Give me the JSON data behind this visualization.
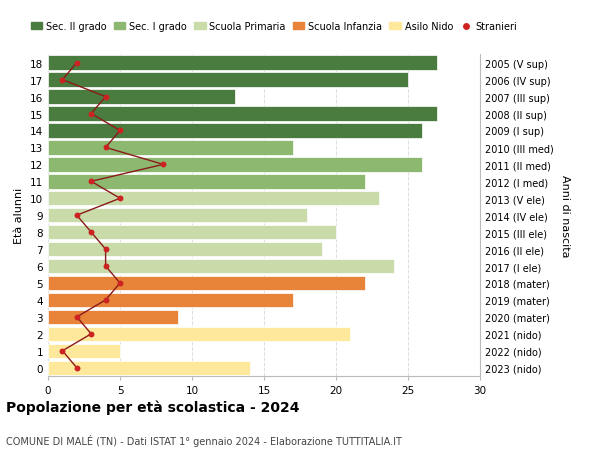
{
  "ages": [
    0,
    1,
    2,
    3,
    4,
    5,
    6,
    7,
    8,
    9,
    10,
    11,
    12,
    13,
    14,
    15,
    16,
    17,
    18
  ],
  "right_labels": [
    "2023 (nido)",
    "2022 (nido)",
    "2021 (nido)",
    "2020 (mater)",
    "2019 (mater)",
    "2018 (mater)",
    "2017 (I ele)",
    "2016 (II ele)",
    "2015 (III ele)",
    "2014 (IV ele)",
    "2013 (V ele)",
    "2012 (I med)",
    "2011 (II med)",
    "2010 (III med)",
    "2009 (I sup)",
    "2008 (II sup)",
    "2007 (III sup)",
    "2006 (IV sup)",
    "2005 (V sup)"
  ],
  "bar_values": [
    14,
    5,
    21,
    9,
    17,
    22,
    24,
    19,
    20,
    18,
    23,
    22,
    26,
    17,
    26,
    27,
    13,
    25,
    27
  ],
  "bar_colors": [
    "#fde89c",
    "#fde89c",
    "#fde89c",
    "#e8833a",
    "#e8833a",
    "#e8833a",
    "#c8dba8",
    "#c8dba8",
    "#c8dba8",
    "#c8dba8",
    "#c8dba8",
    "#8db870",
    "#8db870",
    "#8db870",
    "#4a7c3f",
    "#4a7c3f",
    "#4a7c3f",
    "#4a7c3f",
    "#4a7c3f"
  ],
  "stranieri_values": [
    2,
    1,
    3,
    2,
    4,
    5,
    4,
    4,
    3,
    2,
    5,
    3,
    8,
    4,
    5,
    3,
    4,
    1,
    2
  ],
  "legend_labels": [
    "Sec. II grado",
    "Sec. I grado",
    "Scuola Primaria",
    "Scuola Infanzia",
    "Asilo Nido",
    "Stranieri"
  ],
  "legend_colors": [
    "#4a7c3f",
    "#8db870",
    "#c8dba8",
    "#e8833a",
    "#fde89c",
    "#cc2222"
  ],
  "title": "Popolazione per età scolastica - 2024",
  "subtitle": "COMUNE DI MALÉ (TN) - Dati ISTAT 1° gennaio 2024 - Elaborazione TUTTITALIA.IT",
  "ylabel_left": "Età alunni",
  "ylabel_right": "Anni di nascita",
  "xlim": [
    0,
    30
  ],
  "xticks": [
    0,
    5,
    10,
    15,
    20,
    25,
    30
  ],
  "background_color": "#ffffff",
  "grid_color": "#dddddd",
  "bar_height": 0.85
}
